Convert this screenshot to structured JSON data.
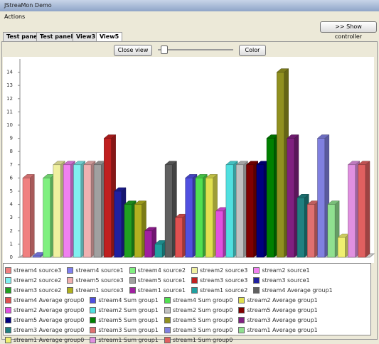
{
  "window": {
    "title": "JStreaMon Demo",
    "menu": [
      "Actions"
    ],
    "show_controller": ">> Show controller",
    "tabs": [
      "Test panel",
      "Test panel2",
      "View3",
      "View5"
    ],
    "close_view": "Close view",
    "color_button": "Color"
  },
  "chart_data": {
    "type": "bar3d",
    "ylim": [
      0,
      15
    ],
    "yticks": [
      0,
      1,
      2,
      3,
      4,
      5,
      6,
      7,
      8,
      9,
      10,
      11,
      12,
      13,
      14
    ],
    "series": [
      {
        "name": "stream4 source3",
        "color": "#f08080",
        "values": [
          6
        ]
      },
      {
        "name": "stream4 source1",
        "color": "#8080f0",
        "values": [
          0.1
        ]
      },
      {
        "name": "stream4 source2",
        "color": "#80f080",
        "values": [
          6
        ]
      },
      {
        "name": "stream2 source3",
        "color": "#f0f0a0",
        "values": [
          7
        ]
      },
      {
        "name": "stream2 source1",
        "color": "#f080f0",
        "values": [
          7
        ]
      },
      {
        "name": "stream2 source2",
        "color": "#80f0f0",
        "values": [
          7
        ]
      },
      {
        "name": "stream5 source3",
        "color": "#f0b0b0",
        "values": [
          7
        ]
      },
      {
        "name": "stream5 source1",
        "color": "#a0a0a0",
        "values": [
          7
        ]
      },
      {
        "name": "stream3 source3",
        "color": "#c02020",
        "values": [
          9
        ]
      },
      {
        "name": "stream3 source1",
        "color": "#2020a0",
        "values": [
          5
        ]
      },
      {
        "name": "stream3 source2",
        "color": "#20a020",
        "values": [
          4
        ]
      },
      {
        "name": "stream1 source3",
        "color": "#b0b020",
        "values": [
          4
        ]
      },
      {
        "name": "stream1 source1",
        "color": "#a020a0",
        "values": [
          2
        ]
      },
      {
        "name": "stream1 source2",
        "color": "#20a0a0",
        "values": [
          1
        ]
      },
      {
        "name": "stream4 Average group1",
        "color": "#606060",
        "values": [
          7
        ]
      },
      {
        "name": "stream4 Average group0",
        "color": "#e05050",
        "values": [
          3
        ]
      },
      {
        "name": "stream4 Sum group1",
        "color": "#5050e0",
        "values": [
          6
        ]
      },
      {
        "name": "stream4 Sum group0",
        "color": "#50e050",
        "values": [
          6
        ]
      },
      {
        "name": "stream2 Average group1",
        "color": "#e0e050",
        "values": [
          6
        ]
      },
      {
        "name": "stream2 Average group0",
        "color": "#e050e0",
        "values": [
          3.5
        ]
      },
      {
        "name": "stream2 Sum group1",
        "color": "#50e0e0",
        "values": [
          7
        ]
      },
      {
        "name": "stream2 Sum group0",
        "color": "#c0c0c0",
        "values": [
          7
        ]
      },
      {
        "name": "stream5 Average group1",
        "color": "#800000",
        "values": [
          7
        ]
      },
      {
        "name": "stream5 Average group0",
        "color": "#000080",
        "values": [
          7
        ]
      },
      {
        "name": "stream5 Sum group1",
        "color": "#008000",
        "values": [
          9
        ]
      },
      {
        "name": "stream5 Sum group0",
        "color": "#909020",
        "values": [
          14
        ]
      },
      {
        "name": "stream3 Average group1",
        "color": "#802080",
        "values": [
          9
        ]
      },
      {
        "name": "stream3 Average group0",
        "color": "#208080",
        "values": [
          4.5
        ]
      },
      {
        "name": "stream3 Sum group1",
        "color": "#e07070",
        "values": [
          4
        ]
      },
      {
        "name": "stream3 Sum group0",
        "color": "#8080e0",
        "values": [
          9
        ]
      },
      {
        "name": "stream1 Average group1",
        "color": "#90e090",
        "values": [
          4
        ]
      },
      {
        "name": "stream1 Average group0",
        "color": "#f0f070",
        "values": [
          1.5
        ]
      },
      {
        "name": "stream1 Sum group1",
        "color": "#e090e0",
        "values": [
          7
        ]
      },
      {
        "name": "stream1 Sum group0",
        "color": "#e06060",
        "values": [
          7
        ]
      }
    ]
  }
}
